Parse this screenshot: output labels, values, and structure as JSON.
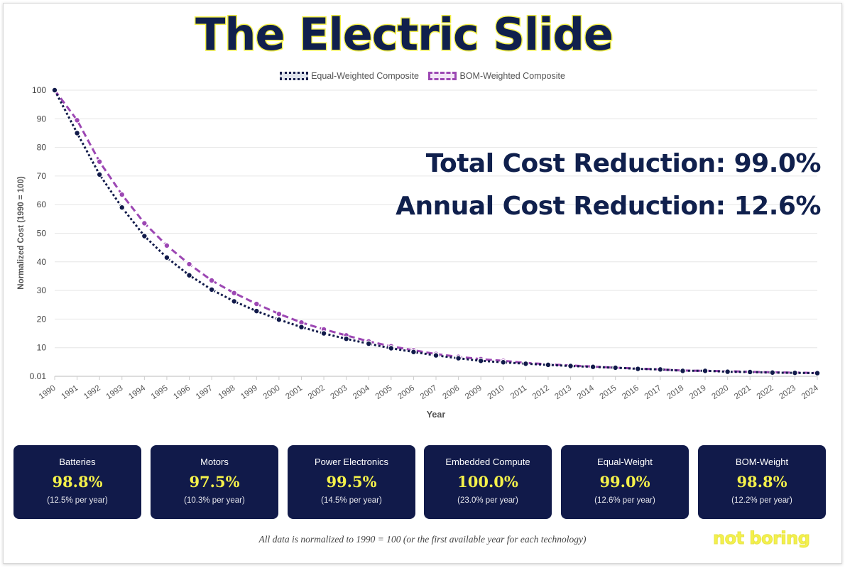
{
  "title": "The Electric Slide",
  "legend": {
    "equal": "Equal-Weighted Composite",
    "bom": "BOM-Weighted Composite"
  },
  "headline": {
    "total": "Total Cost Reduction: 99.0%",
    "annual": "Annual Cost Reduction: 12.6%"
  },
  "colors": {
    "navy": "#111a4a",
    "purple": "#9c47b3",
    "yellow": "#f4f14a"
  },
  "chart_data": {
    "type": "line",
    "xlabel": "Year",
    "ylabel": "Normalized Cost (1990 = 100)",
    "ylim": [
      0,
      100
    ],
    "yticks": [
      "0.01",
      "10",
      "20",
      "30",
      "40",
      "50",
      "60",
      "70",
      "80",
      "90",
      "100"
    ],
    "categories": [
      "1990",
      "1991",
      "1992",
      "1993",
      "1994",
      "1995",
      "1996",
      "1997",
      "1998",
      "1999",
      "2000",
      "2001",
      "2002",
      "2003",
      "2004",
      "2005",
      "2006",
      "2007",
      "2008",
      "2009",
      "2010",
      "2011",
      "2012",
      "2013",
      "2014",
      "2015",
      "2016",
      "2017",
      "2018",
      "2019",
      "2020",
      "2021",
      "2022",
      "2023",
      "2024"
    ],
    "series": [
      {
        "name": "Equal-Weighted Composite",
        "style": "dotted",
        "color": "#111a4a",
        "values": [
          100,
          85,
          70.5,
          59,
          49,
          41.5,
          35.3,
          30.3,
          26.2,
          22.8,
          19.8,
          17.2,
          15,
          13.1,
          11.4,
          9.8,
          8.5,
          7.3,
          6.3,
          5.4,
          4.9,
          4.4,
          4,
          3.6,
          3.3,
          3,
          2.6,
          2.4,
          1.9,
          1.9,
          1.6,
          1.5,
          1.3,
          1.2,
          1.1
        ]
      },
      {
        "name": "BOM-Weighted Composite",
        "style": "dashed",
        "color": "#9c47b3",
        "values": [
          100,
          89.5,
          75,
          63.5,
          53.5,
          45.7,
          39.2,
          33.5,
          29.1,
          25.3,
          21.8,
          18.8,
          16.4,
          14.3,
          12.2,
          10.5,
          9.1,
          7.8,
          6.8,
          6,
          5.4,
          4.7,
          4.2,
          3.8,
          3.4,
          3,
          2.7,
          2.4,
          2,
          1.9,
          1.8,
          1.6,
          1.4,
          1.3,
          1.2
        ]
      }
    ]
  },
  "cards": [
    {
      "label": "Batteries",
      "pct": "98.8%",
      "rate": "(12.5% per year)"
    },
    {
      "label": "Motors",
      "pct": "97.5%",
      "rate": "(10.3% per year)"
    },
    {
      "label": "Power Electronics",
      "pct": "99.5%",
      "rate": "(14.5% per year)"
    },
    {
      "label": "Embedded Compute",
      "pct": "100.0%",
      "rate": "(23.0% per year)"
    },
    {
      "label": "Equal-Weight",
      "pct": "99.0%",
      "rate": "(12.6% per year)"
    },
    {
      "label": "BOM-Weight",
      "pct": "98.8%",
      "rate": "(12.2% per year)"
    }
  ],
  "footnote": "All data is normalized to 1990 = 100 (or the first available year for each technology)",
  "brand": "not boring"
}
